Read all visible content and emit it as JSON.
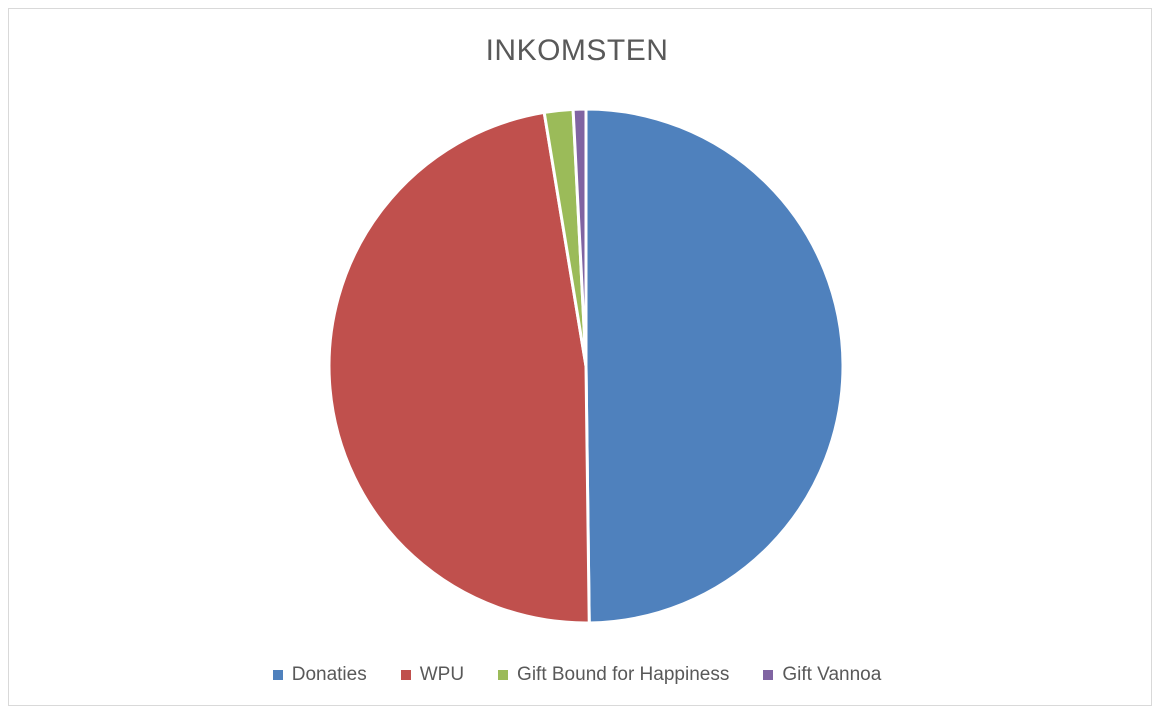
{
  "chart_data": {
    "type": "pie",
    "title": "INKOMSTEN",
    "legend_position": "bottom",
    "categories": [
      "Donaties",
      "WPU",
      "Gift Bound for Happiness",
      "Gift Vannoa"
    ],
    "values": [
      49.8,
      47.6,
      1.8,
      0.8
    ],
    "colors": [
      "#4f81bd",
      "#c0504d",
      "#9bbb59",
      "#8064a2"
    ]
  }
}
